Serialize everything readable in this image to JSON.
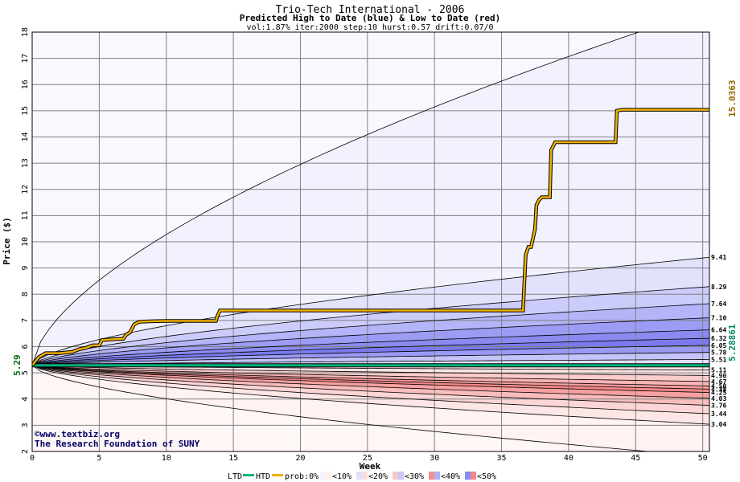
{
  "chart_data": {
    "type": "area",
    "title": "Trio-Tech International - 2006",
    "subtitle": "Predicted High to Date (blue) &  Low to Date (red)",
    "params": "vol:1.87% iter:2000 step:10 hurst:0.57 drift:0.07/0",
    "xlabel": "Week",
    "ylabel": "Price ($)",
    "xlim": [
      0,
      50.5
    ],
    "ylim": [
      2,
      18
    ],
    "xticks": [
      "0",
      "5",
      "10",
      "15",
      "20",
      "25",
      "30",
      "35",
      "40",
      "45",
      "50"
    ],
    "yticks": [
      "2",
      "3",
      "4",
      "5",
      "6",
      "7",
      "8",
      "9",
      "10",
      "11",
      "12",
      "13",
      "14",
      "15",
      "16",
      "17",
      "18"
    ],
    "grid": true,
    "start_price": 5.29,
    "start_label": "5.29",
    "final_high": 15.0363,
    "final_high_label": "15.0363",
    "final_low": 5.28861,
    "final_low_label": "5.28861",
    "upper_band_ends": [
      18.9,
      9.41,
      8.29,
      7.64,
      7.1,
      6.64,
      6.32,
      6.05,
      5.78,
      5.51
    ],
    "upper_end_labels": [
      "9.41",
      "8.29",
      "7.64",
      "7.10",
      "6.64",
      "6.32",
      "6.05",
      "5.78",
      "5.51"
    ],
    "lower_band_ends": [
      5.11,
      4.9,
      4.67,
      4.5,
      4.38,
      4.25,
      4.03,
      3.76,
      3.44,
      3.04,
      1.8
    ],
    "lower_end_labels": [
      "5.11",
      "4.90",
      "4.67",
      "4.50",
      "4.38",
      "4.25",
      "4.03",
      "3.76",
      "3.44",
      "3.04"
    ],
    "high_to_date": {
      "name": "HTD",
      "x": [
        0,
        0.5,
        1,
        2,
        3,
        3.5,
        4,
        4.5,
        5,
        5.2,
        6,
        6.8,
        7,
        7.3,
        7.6,
        8,
        9,
        10,
        11,
        12,
        13,
        13.7,
        13.8,
        14,
        15,
        20,
        25,
        30,
        35,
        36.6,
        36.8,
        37.0,
        37.2,
        37.5,
        37.6,
        37.8,
        38.0,
        38.3,
        38.6,
        38.7,
        39,
        40,
        43,
        43.5,
        43.6,
        44,
        50.5
      ],
      "y": [
        5.29,
        5.6,
        5.75,
        5.75,
        5.8,
        5.9,
        5.95,
        6.05,
        6.05,
        6.25,
        6.28,
        6.3,
        6.45,
        6.55,
        6.85,
        6.95,
        6.97,
        6.98,
        6.98,
        6.98,
        6.98,
        6.98,
        7.15,
        7.38,
        7.38,
        7.38,
        7.38,
        7.38,
        7.38,
        7.38,
        9.5,
        9.8,
        9.8,
        10.5,
        11.4,
        11.6,
        11.7,
        11.7,
        11.7,
        13.5,
        13.8,
        13.8,
        13.8,
        13.8,
        15.0,
        15.04,
        15.04
      ]
    },
    "low_to_date": {
      "name": "LTD",
      "x": [
        0,
        50.5
      ],
      "y": [
        5.288,
        5.2886
      ]
    },
    "legend": {
      "ltd": "LTD",
      "htd": "HTD",
      "prob_label": "prob:0%",
      "items": [
        "<10%",
        "<20%",
        "<30%",
        "<40%",
        "<50%"
      ]
    },
    "credit_line1": "©www.textbiz.org",
    "credit_line2": "The Research Foundation of SUNY",
    "colors": {
      "htd_line": "#f0b000",
      "ltd_line": "#00b080",
      "upper_bands": [
        "#f2f2fe",
        "#e2e2fd",
        "#ccccfb",
        "#b4b4f8",
        "#9c9cf4",
        "#8a8af0",
        "#7a7aee",
        "#9a9af4",
        "#c4c4fa"
      ],
      "lower_bands": [
        "#fce2e2",
        "#fbcccc",
        "#f9b4b4",
        "#f69c9c",
        "#f48888",
        "#f6a0a0",
        "#f9bcbc",
        "#fcd6d6",
        "#fde6e6",
        "#fef2f2"
      ],
      "start_label": "#006600",
      "high_label": "#996600",
      "low_label": "#008866"
    }
  }
}
